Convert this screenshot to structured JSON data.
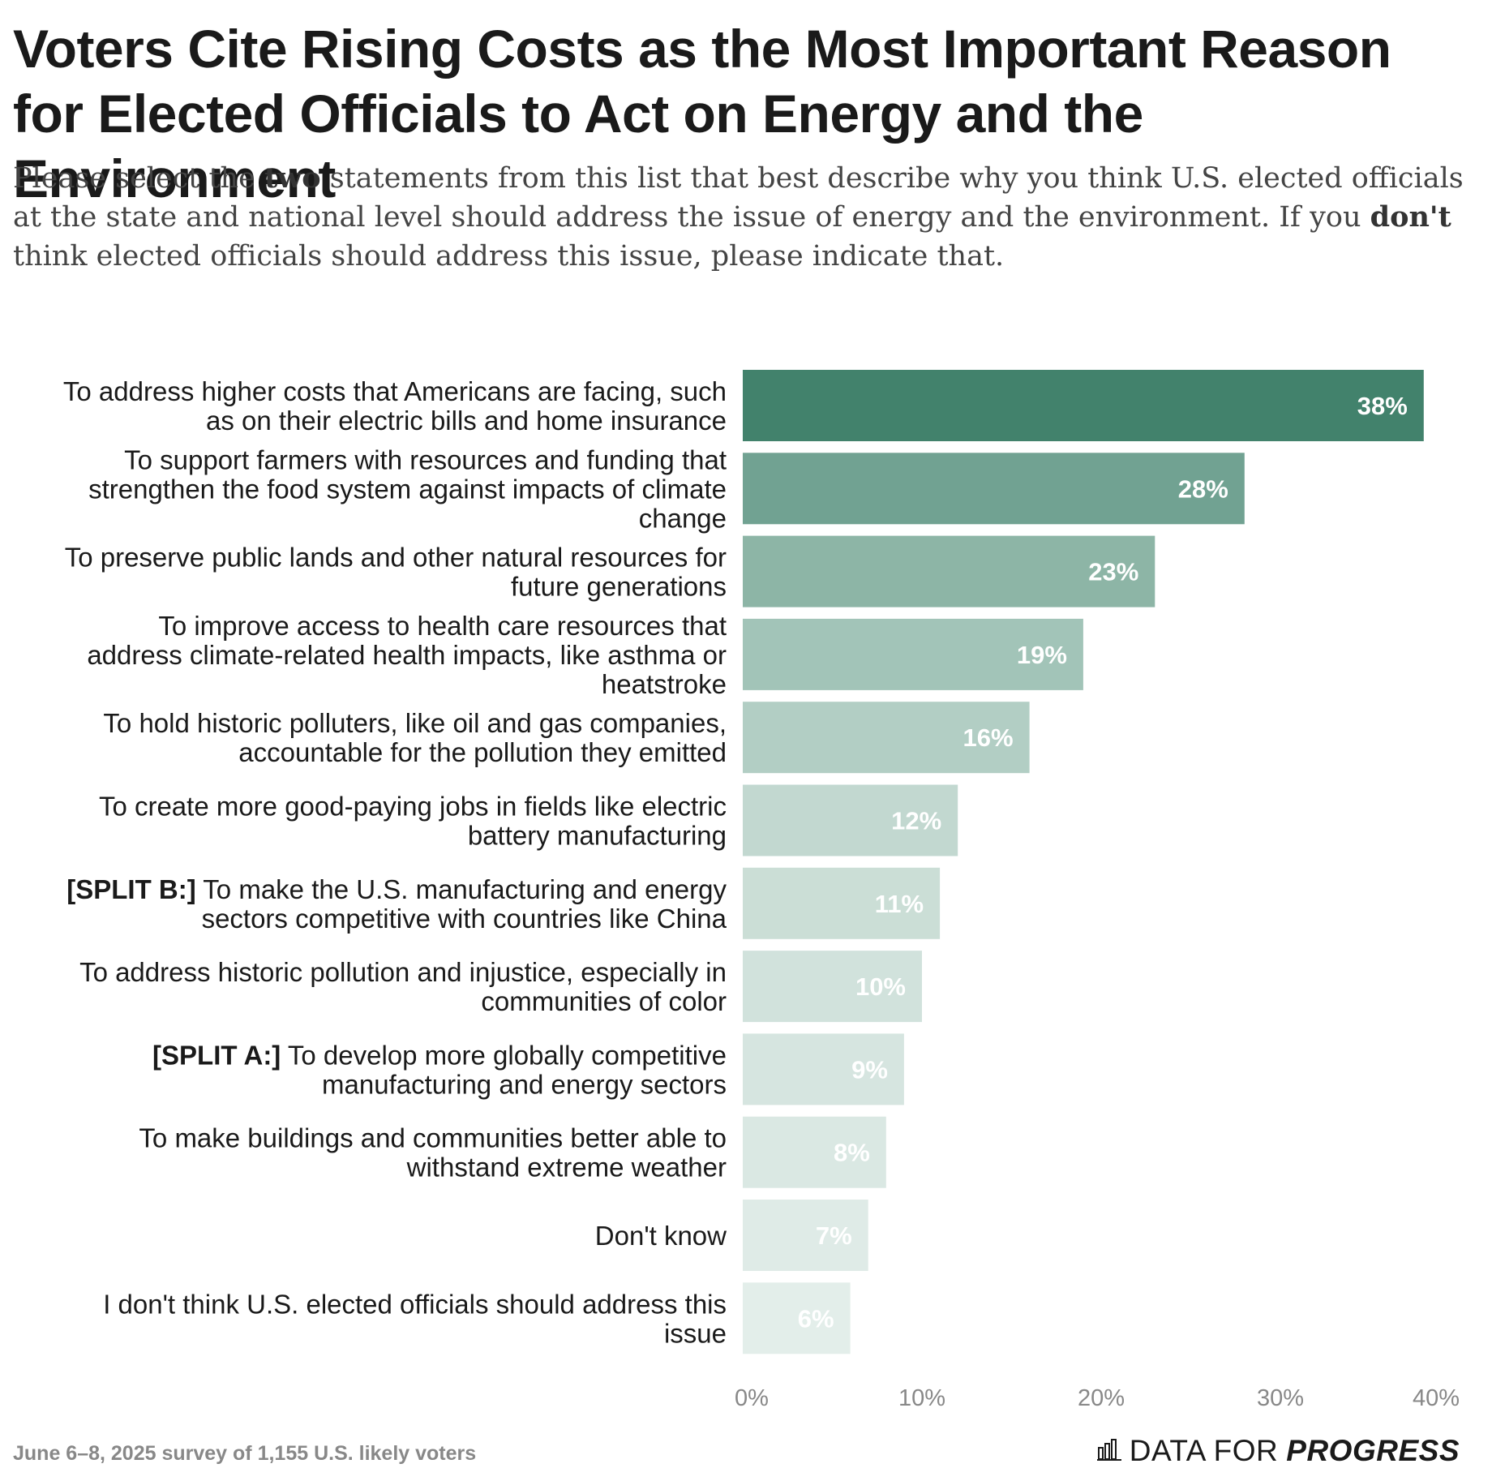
{
  "title": "Voters Cite Rising Costs as the Most Important Reason for Elected Officials to Act on Energy and the Environment",
  "subtitle": {
    "part1": "Please select the ",
    "bold1": "two",
    "part2": " statements from this list that best describe why you think U.S. elected officials at the state and national level should address the issue of energy and the environment. If you ",
    "bold2": "don't",
    "part3": " think elected officials should address this issue, please indicate that."
  },
  "chart_data": {
    "type": "bar",
    "orientation": "horizontal",
    "categories": [
      {
        "lines": [
          [
            "",
            "To address higher costs that Americans are facing, such"
          ],
          [
            "",
            "as on their electric bills and home insurance"
          ]
        ]
      },
      {
        "lines": [
          [
            "",
            "To support farmers with resources and funding that"
          ],
          [
            "",
            "strengthen the food system against impacts of climate"
          ],
          [
            "",
            "change"
          ]
        ]
      },
      {
        "lines": [
          [
            "",
            "To preserve public lands and other natural resources for"
          ],
          [
            "",
            "future generations"
          ]
        ]
      },
      {
        "lines": [
          [
            "",
            "To improve access to health care resources that"
          ],
          [
            "",
            "address climate-related health impacts, like asthma or"
          ],
          [
            "",
            "heatstroke"
          ]
        ]
      },
      {
        "lines": [
          [
            "",
            "To hold historic polluters, like oil and gas companies,"
          ],
          [
            "",
            "accountable for the pollution they emitted"
          ]
        ]
      },
      {
        "lines": [
          [
            "",
            "To create more good-paying jobs in fields like electric"
          ],
          [
            "",
            "battery manufacturing"
          ]
        ]
      },
      {
        "lines": [
          [
            "[SPLIT B:]",
            " To make the U.S. manufacturing and energy"
          ],
          [
            "",
            "sectors competitive with countries like China"
          ]
        ]
      },
      {
        "lines": [
          [
            "",
            "To address historic pollution and injustice, especially in"
          ],
          [
            "",
            "communities of color"
          ]
        ]
      },
      {
        "lines": [
          [
            "[SPLIT A:]",
            " To develop more globally competitive"
          ],
          [
            "",
            "manufacturing and energy sectors"
          ]
        ]
      },
      {
        "lines": [
          [
            "",
            "To make buildings and communities better able to"
          ],
          [
            "",
            "withstand extreme weather"
          ]
        ]
      },
      {
        "lines": [
          [
            "",
            "Don't know"
          ]
        ]
      },
      {
        "lines": [
          [
            "",
            "I don't think U.S. elected officials should address this"
          ],
          [
            "",
            "issue"
          ]
        ]
      }
    ],
    "values": [
      38,
      28,
      23,
      19,
      16,
      12,
      11,
      10,
      9,
      8,
      7,
      6
    ],
    "value_labels": [
      "38%",
      "28%",
      "23%",
      "19%",
      "16%",
      "12%",
      "11%",
      "10%",
      "9%",
      "8%",
      "7%",
      "6%"
    ],
    "colors": [
      "#42826c",
      "#71a292",
      "#8db5a6",
      "#a2c4b8",
      "#b2cec4",
      "#c2d8d0",
      "#cbded6",
      "#d1e2dc",
      "#d6e5e0",
      "#dae8e3",
      "#dfebe7",
      "#e3eeea"
    ],
    "xticks": [
      0,
      10,
      20,
      30,
      40
    ],
    "xtick_labels": [
      "0%",
      "10%",
      "20%",
      "30%",
      "40%"
    ],
    "xlim": [
      0,
      40
    ]
  },
  "source": "June 6–8, 2025 survey of 1,155 U.S. likely voters",
  "brand": {
    "regular": "DATA FOR",
    "bold": "PROGRESS",
    "icon": "bar-chart-icon"
  }
}
